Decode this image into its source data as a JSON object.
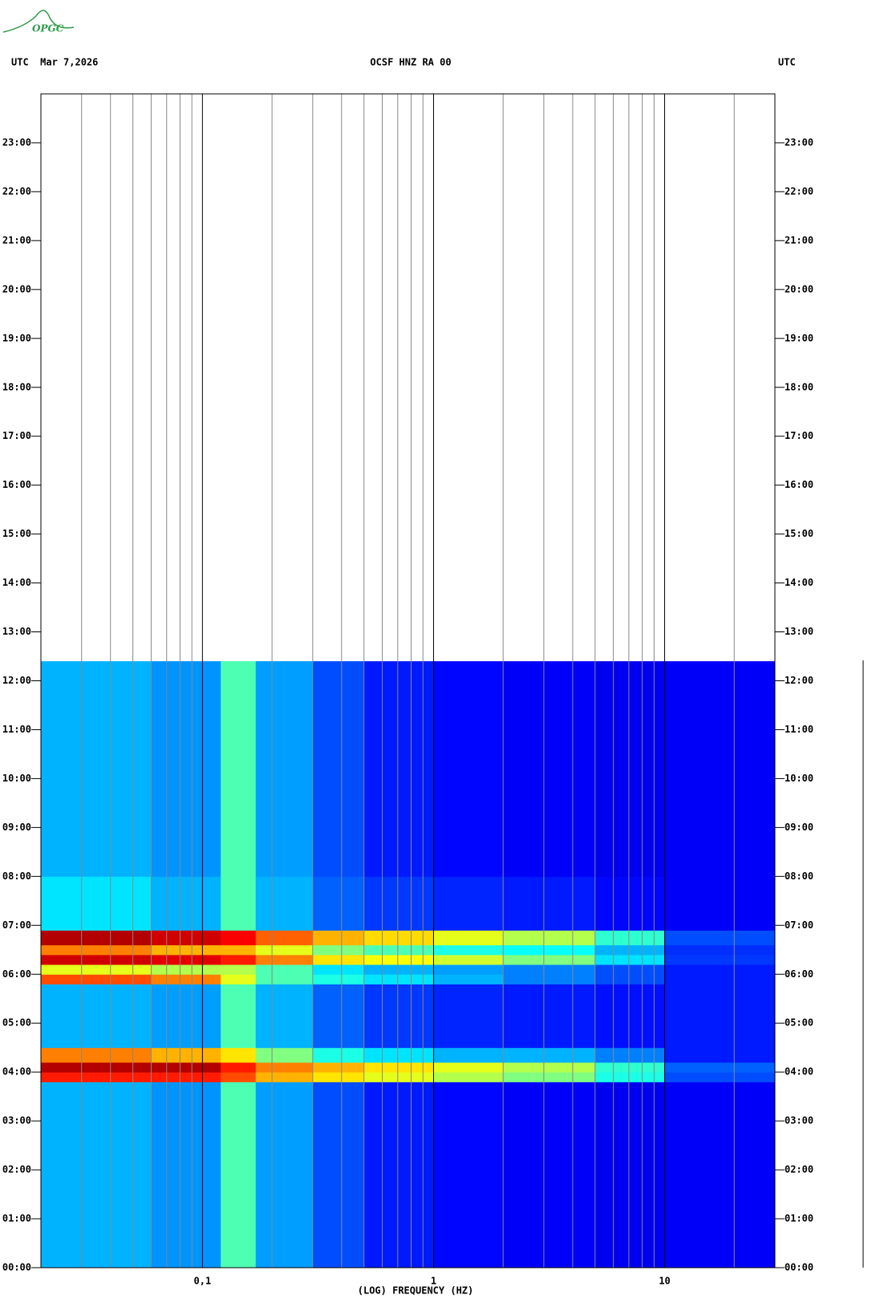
{
  "logo": "OPGC",
  "chart_data": {
    "type": "spectrogram",
    "header_left": "UTC  Mar 7,2026",
    "title": "OCSF HNZ RA 00",
    "header_right": "UTC",
    "xlabel": "(LOG) FREQUENCY (HZ)",
    "x_log": true,
    "colormap": "jet",
    "xlim": [
      0.02,
      30
    ],
    "ylim": [
      0,
      24
    ],
    "xticks": [
      {
        "value": 0.1,
        "label": "0,1"
      },
      1,
      10
    ],
    "xminor": [
      0.03,
      0.04,
      0.05,
      0.06,
      0.07,
      0.08,
      0.09,
      0.2,
      0.3,
      0.4,
      0.5,
      0.6,
      0.7,
      0.8,
      0.9,
      2,
      3,
      4,
      5,
      6,
      7,
      8,
      9,
      20
    ],
    "yticks": [
      {
        "value": 0,
        "label": "00:00"
      },
      {
        "value": 1,
        "label": "01:00"
      },
      {
        "value": 2,
        "label": "02:00"
      },
      {
        "value": 3,
        "label": "03:00"
      },
      {
        "value": 4,
        "label": "04:00"
      },
      {
        "value": 5,
        "label": "05:00"
      },
      {
        "value": 6,
        "label": "06:00"
      },
      {
        "value": 7,
        "label": "07:00"
      },
      {
        "value": 8,
        "label": "08:00"
      },
      {
        "value": 9,
        "label": "09:00"
      },
      {
        "value": 10,
        "label": "10:00"
      },
      {
        "value": 11,
        "label": "11:00"
      },
      {
        "value": 12,
        "label": "12:00"
      },
      {
        "value": 13,
        "label": "13:00"
      },
      {
        "value": 14,
        "label": "14:00"
      },
      {
        "value": 15,
        "label": "15:00"
      },
      {
        "value": 16,
        "label": "16:00"
      },
      {
        "value": 17,
        "label": "17:00"
      },
      {
        "value": 18,
        "label": "18:00"
      },
      {
        "value": 19,
        "label": "19:00"
      },
      {
        "value": 20,
        "label": "20:00"
      },
      {
        "value": 21,
        "label": "21:00"
      },
      {
        "value": 22,
        "label": "22:00"
      },
      {
        "value": 23,
        "label": "23:00"
      }
    ],
    "x": [
      0.02,
      0.06,
      0.12,
      0.17,
      0.3,
      0.5,
      1,
      2,
      5,
      10,
      30
    ],
    "y": [
      0,
      3.8,
      4.0,
      4.2,
      4.5,
      5.8,
      6.0,
      6.2,
      6.4,
      6.6,
      6.9,
      8,
      12.4
    ],
    "values": [
      [
        0.3,
        0.27,
        0.45,
        0.28,
        0.2,
        0.15,
        0.13,
        0.12,
        0.11,
        0.12
      ],
      [
        0.85,
        0.85,
        0.8,
        0.7,
        0.65,
        0.6,
        0.55,
        0.5,
        0.4,
        0.2
      ],
      [
        0.95,
        0.95,
        0.85,
        0.75,
        0.7,
        0.65,
        0.6,
        0.55,
        0.42,
        0.22
      ],
      [
        0.75,
        0.7,
        0.65,
        0.5,
        0.4,
        0.35,
        0.3,
        0.3,
        0.25,
        0.15
      ],
      [
        0.3,
        0.28,
        0.45,
        0.3,
        0.22,
        0.18,
        0.16,
        0.15,
        0.14,
        0.15
      ],
      [
        0.8,
        0.75,
        0.6,
        0.45,
        0.4,
        0.35,
        0.3,
        0.25,
        0.2,
        0.15
      ],
      [
        0.6,
        0.55,
        0.55,
        0.45,
        0.35,
        0.3,
        0.28,
        0.25,
        0.2,
        0.15
      ],
      [
        0.92,
        0.9,
        0.85,
        0.75,
        0.65,
        0.62,
        0.58,
        0.5,
        0.35,
        0.18
      ],
      [
        0.75,
        0.7,
        0.7,
        0.6,
        0.5,
        0.45,
        0.4,
        0.38,
        0.3,
        0.17
      ],
      [
        0.95,
        0.92,
        0.88,
        0.78,
        0.7,
        0.66,
        0.6,
        0.55,
        0.42,
        0.2
      ],
      [
        0.35,
        0.3,
        0.45,
        0.3,
        0.22,
        0.18,
        0.16,
        0.15,
        0.13,
        0.12
      ],
      [
        0.3,
        0.27,
        0.45,
        0.28,
        0.2,
        0.15,
        0.13,
        0.12,
        0.11,
        0.12
      ]
    ]
  }
}
